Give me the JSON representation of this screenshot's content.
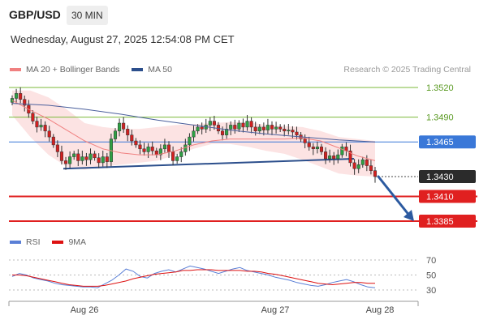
{
  "header": {
    "symbol": "GBP/USD",
    "timeframe": "30 MIN"
  },
  "datetime": "Wednesday, August 27, 2025 12:54:08 PM CET",
  "legend_main": [
    {
      "label": "MA 20 + Bollinger Bands",
      "color": "#f08080"
    },
    {
      "label": "MA 50",
      "color": "#2c4f8c"
    }
  ],
  "legend_rsi": [
    {
      "label": "RSI",
      "color": "#5a7fd6"
    },
    {
      "label": "9MA",
      "color": "#dd1111"
    }
  ],
  "copyright": "Research © 2025 Trading Central",
  "chart_data": {
    "type": "candlestick",
    "price_ylim": [
      1.3372,
      1.3548
    ],
    "x_labels": [
      "Aug 26",
      "Aug 27",
      "Aug 28"
    ],
    "levels": [
      {
        "value": 1.352,
        "label": "1.3520",
        "kind": "resistance",
        "color": "#7bb83a"
      },
      {
        "value": 1.349,
        "label": "1.3490",
        "kind": "resistance",
        "color": "#7bb83a"
      },
      {
        "value": 1.3465,
        "label": "1.3465",
        "kind": "pivot",
        "color": "#3a78d8"
      },
      {
        "value": 1.343,
        "label": "1.3430",
        "kind": "last",
        "color": "#333333"
      },
      {
        "value": 1.341,
        "label": "1.3410",
        "kind": "support",
        "color": "#e02020"
      },
      {
        "value": 1.3385,
        "label": "1.3385",
        "kind": "support",
        "color": "#e02020"
      }
    ],
    "channel_bottom": [
      1.3438,
      1.3448
    ],
    "close": [
      1.3509,
      1.3514,
      1.3508,
      1.3502,
      1.3494,
      1.3486,
      1.348,
      1.3482,
      1.3476,
      1.347,
      1.3462,
      1.3455,
      1.3446,
      1.3443,
      1.345,
      1.3453,
      1.3446,
      1.345,
      1.3447,
      1.3453,
      1.3449,
      1.3444,
      1.345,
      1.3445,
      1.3468,
      1.3476,
      1.3484,
      1.3478,
      1.3472,
      1.3466,
      1.3462,
      1.3458,
      1.3455,
      1.346,
      1.3456,
      1.3452,
      1.3458,
      1.3462,
      1.3455,
      1.3446,
      1.345,
      1.3455,
      1.3462,
      1.347,
      1.3476,
      1.348,
      1.3478,
      1.3482,
      1.3486,
      1.3482,
      1.3476,
      1.3472,
      1.3478,
      1.3482,
      1.3478,
      1.3484,
      1.348,
      1.3486,
      1.348,
      1.3476,
      1.348,
      1.3477,
      1.3482,
      1.3478,
      1.348,
      1.3478,
      1.3476,
      1.3477,
      1.3475,
      1.3472,
      1.3468,
      1.3464,
      1.346,
      1.3458,
      1.346,
      1.3455,
      1.3448,
      1.3451,
      1.3448,
      1.3452,
      1.346,
      1.3456,
      1.3444,
      1.3438,
      1.3442,
      1.3447,
      1.3441,
      1.3436,
      1.343
    ],
    "ma50": [
      1.3504,
      1.3502,
      1.3498,
      1.3493,
      1.3487,
      1.3482,
      1.3477,
      1.3473,
      1.347,
      1.3467,
      1.3465
    ],
    "ma20": [
      1.3507,
      1.3497,
      1.3488,
      1.3477,
      1.3466,
      1.3458,
      1.3454,
      1.3452,
      1.3452,
      1.3456,
      1.3462,
      1.3466,
      1.3468,
      1.3468,
      1.3468,
      1.3468,
      1.3469,
      1.3466,
      1.3459,
      1.3451,
      1.3446
    ],
    "bb_upper": [
      1.3517,
      1.3517,
      1.351,
      1.3498,
      1.3484,
      1.348,
      1.3478,
      1.3478,
      1.348,
      1.3482,
      1.3483,
      1.3484,
      1.3485,
      1.3485,
      1.3482,
      1.3481,
      1.348,
      1.3476,
      1.347,
      1.3468,
      1.3466
    ],
    "bb_lower": [
      1.3492,
      1.347,
      1.3452,
      1.344,
      1.3437,
      1.344,
      1.3442,
      1.3444,
      1.3446,
      1.3452,
      1.3458,
      1.3463,
      1.3463,
      1.346,
      1.3456,
      1.3453,
      1.3447,
      1.344,
      1.3433,
      1.3431,
      1.343
    ],
    "rsi_ylim": [
      20,
      75
    ],
    "rsi_ticks": [
      70,
      50,
      30
    ],
    "rsi": [
      48,
      52,
      50,
      46,
      44,
      42,
      39,
      37,
      36,
      35,
      34,
      34,
      33,
      38,
      43,
      50,
      58,
      55,
      48,
      46,
      52,
      55,
      57,
      54,
      58,
      62,
      60,
      58,
      55,
      52,
      55,
      58,
      60,
      56,
      54,
      52,
      50,
      47,
      45,
      43,
      40,
      38,
      36,
      35,
      37,
      40,
      42,
      44,
      41,
      37,
      34,
      33
    ],
    "rsi_ma": [
      50,
      50,
      49,
      47,
      45,
      43,
      41,
      39,
      37,
      36,
      35,
      35,
      35,
      36,
      38,
      40,
      42,
      45,
      47,
      49,
      51,
      52,
      53,
      54,
      56,
      56,
      57,
      57,
      57,
      56,
      56,
      56,
      56,
      55,
      55,
      54,
      52,
      51,
      49,
      47,
      45,
      43,
      41,
      39,
      38,
      37,
      38,
      39,
      40,
      40,
      39,
      39
    ]
  }
}
